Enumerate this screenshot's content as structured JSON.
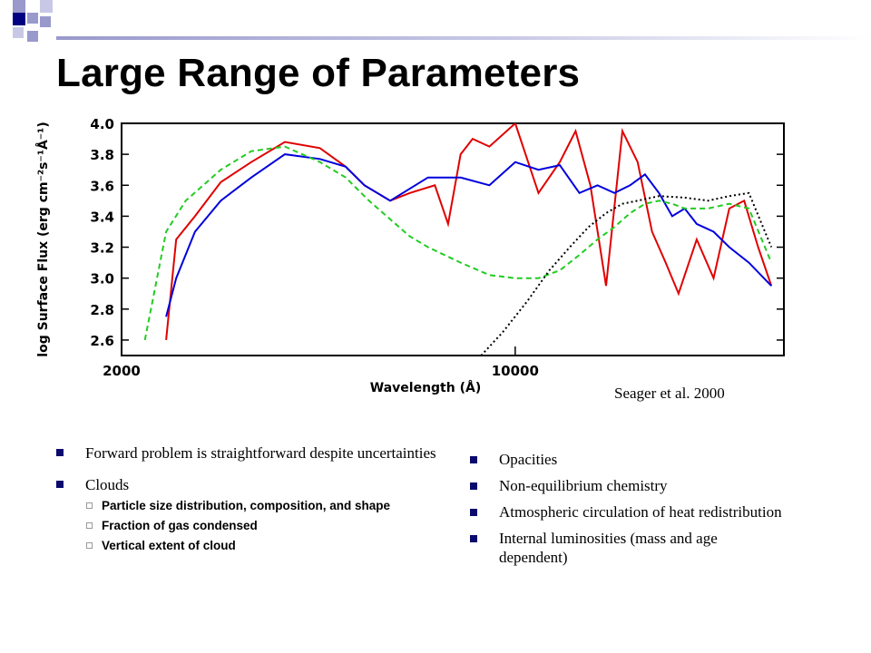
{
  "slide": {
    "title": "Large Range of Parameters",
    "colors": {
      "navy": "#000080",
      "lavender": "#9999cc",
      "light_lavender": "#c8c8e6",
      "bullet": "#0a0a6e"
    }
  },
  "figure": {
    "caption": "Seager et al. 2000"
  },
  "chart_data": {
    "type": "line",
    "xlabel": "Wavelength (Å)",
    "ylabel": "log Surface Flux (erg cm⁻²s⁻¹Å⁻¹)",
    "x_scale": "log",
    "x_ticks": [
      "2000",
      "10000"
    ],
    "y_ticks": [
      "2.6",
      "2.8",
      "3.0",
      "3.2",
      "3.4",
      "3.6",
      "3.8",
      "4.0"
    ],
    "ylim": [
      2.5,
      4.0
    ],
    "xlim": [
      2000,
      30000
    ],
    "series": [
      {
        "color": "#e00000",
        "style": "solid",
        "x": [
          2400,
          2500,
          2700,
          3000,
          3400,
          3900,
          4500,
          5000,
          5400,
          6000,
          6500,
          7200,
          7600,
          8000,
          8400,
          9000,
          10000,
          11000,
          12000,
          12800,
          13600,
          14500,
          15500,
          16500,
          17500,
          18500,
          19500,
          21000,
          22500,
          24000,
          25500,
          27000,
          28500
        ],
        "y": [
          2.6,
          3.25,
          3.4,
          3.62,
          3.75,
          3.88,
          3.84,
          3.72,
          3.6,
          3.5,
          3.55,
          3.6,
          3.35,
          3.8,
          3.9,
          3.85,
          4.0,
          3.55,
          3.75,
          3.95,
          3.6,
          2.95,
          3.95,
          3.75,
          3.3,
          3.1,
          2.9,
          3.25,
          3.0,
          3.45,
          3.5,
          3.2,
          2.95
        ]
      },
      {
        "color": "#0000dd",
        "style": "solid",
        "x": [
          2400,
          2500,
          2700,
          3000,
          3400,
          3900,
          4500,
          5000,
          5400,
          6000,
          7000,
          8000,
          9000,
          10000,
          11000,
          12000,
          13000,
          14000,
          15000,
          16000,
          17000,
          18000,
          19000,
          20000,
          21000,
          22500,
          24000,
          26000,
          28500
        ],
        "y": [
          2.75,
          3.0,
          3.3,
          3.5,
          3.65,
          3.8,
          3.77,
          3.72,
          3.6,
          3.5,
          3.65,
          3.65,
          3.6,
          3.75,
          3.7,
          3.73,
          3.55,
          3.6,
          3.55,
          3.6,
          3.67,
          3.55,
          3.4,
          3.45,
          3.35,
          3.3,
          3.2,
          3.1,
          2.95
        ]
      },
      {
        "color": "#22cc22",
        "style": "dashed",
        "x": [
          2200,
          2400,
          2600,
          3000,
          3400,
          3900,
          4500,
          5000,
          5500,
          6000,
          6500,
          7000,
          8000,
          9000,
          10000,
          11000,
          12000,
          13000,
          14000,
          15000,
          16000,
          17000,
          18000,
          19000,
          20000,
          22000,
          24000,
          26000,
          28500
        ],
        "y": [
          2.6,
          3.3,
          3.5,
          3.7,
          3.82,
          3.85,
          3.75,
          3.65,
          3.5,
          3.38,
          3.27,
          3.2,
          3.1,
          3.02,
          3.0,
          3.0,
          3.05,
          3.15,
          3.25,
          3.33,
          3.42,
          3.48,
          3.5,
          3.48,
          3.45,
          3.45,
          3.48,
          3.45,
          3.1
        ]
      },
      {
        "color": "#000000",
        "style": "dotted",
        "x": [
          8700,
          9500,
          10500,
          11500,
          12500,
          13500,
          14500,
          15500,
          16500,
          18000,
          20000,
          22000,
          24000,
          26000,
          28500
        ],
        "y": [
          2.5,
          2.65,
          2.85,
          3.05,
          3.2,
          3.33,
          3.42,
          3.48,
          3.5,
          3.53,
          3.52,
          3.5,
          3.53,
          3.55,
          3.2
        ]
      }
    ]
  },
  "left_list": {
    "items": [
      {
        "text": "Forward problem is straightforward despite uncertainties"
      },
      {
        "text": "Clouds"
      }
    ],
    "sub_items": [
      {
        "text": "Particle size distribution, composition, and shape"
      },
      {
        "text": "Fraction of gas condensed"
      },
      {
        "text": "Vertical extent of cloud"
      }
    ]
  },
  "right_list": {
    "items": [
      {
        "text": "Opacities"
      },
      {
        "text": "Non-equilibrium chemistry"
      },
      {
        "text": "Atmospheric circulation of heat redistribution"
      },
      {
        "text": "Internal luminosities (mass and age dependent)"
      }
    ]
  }
}
